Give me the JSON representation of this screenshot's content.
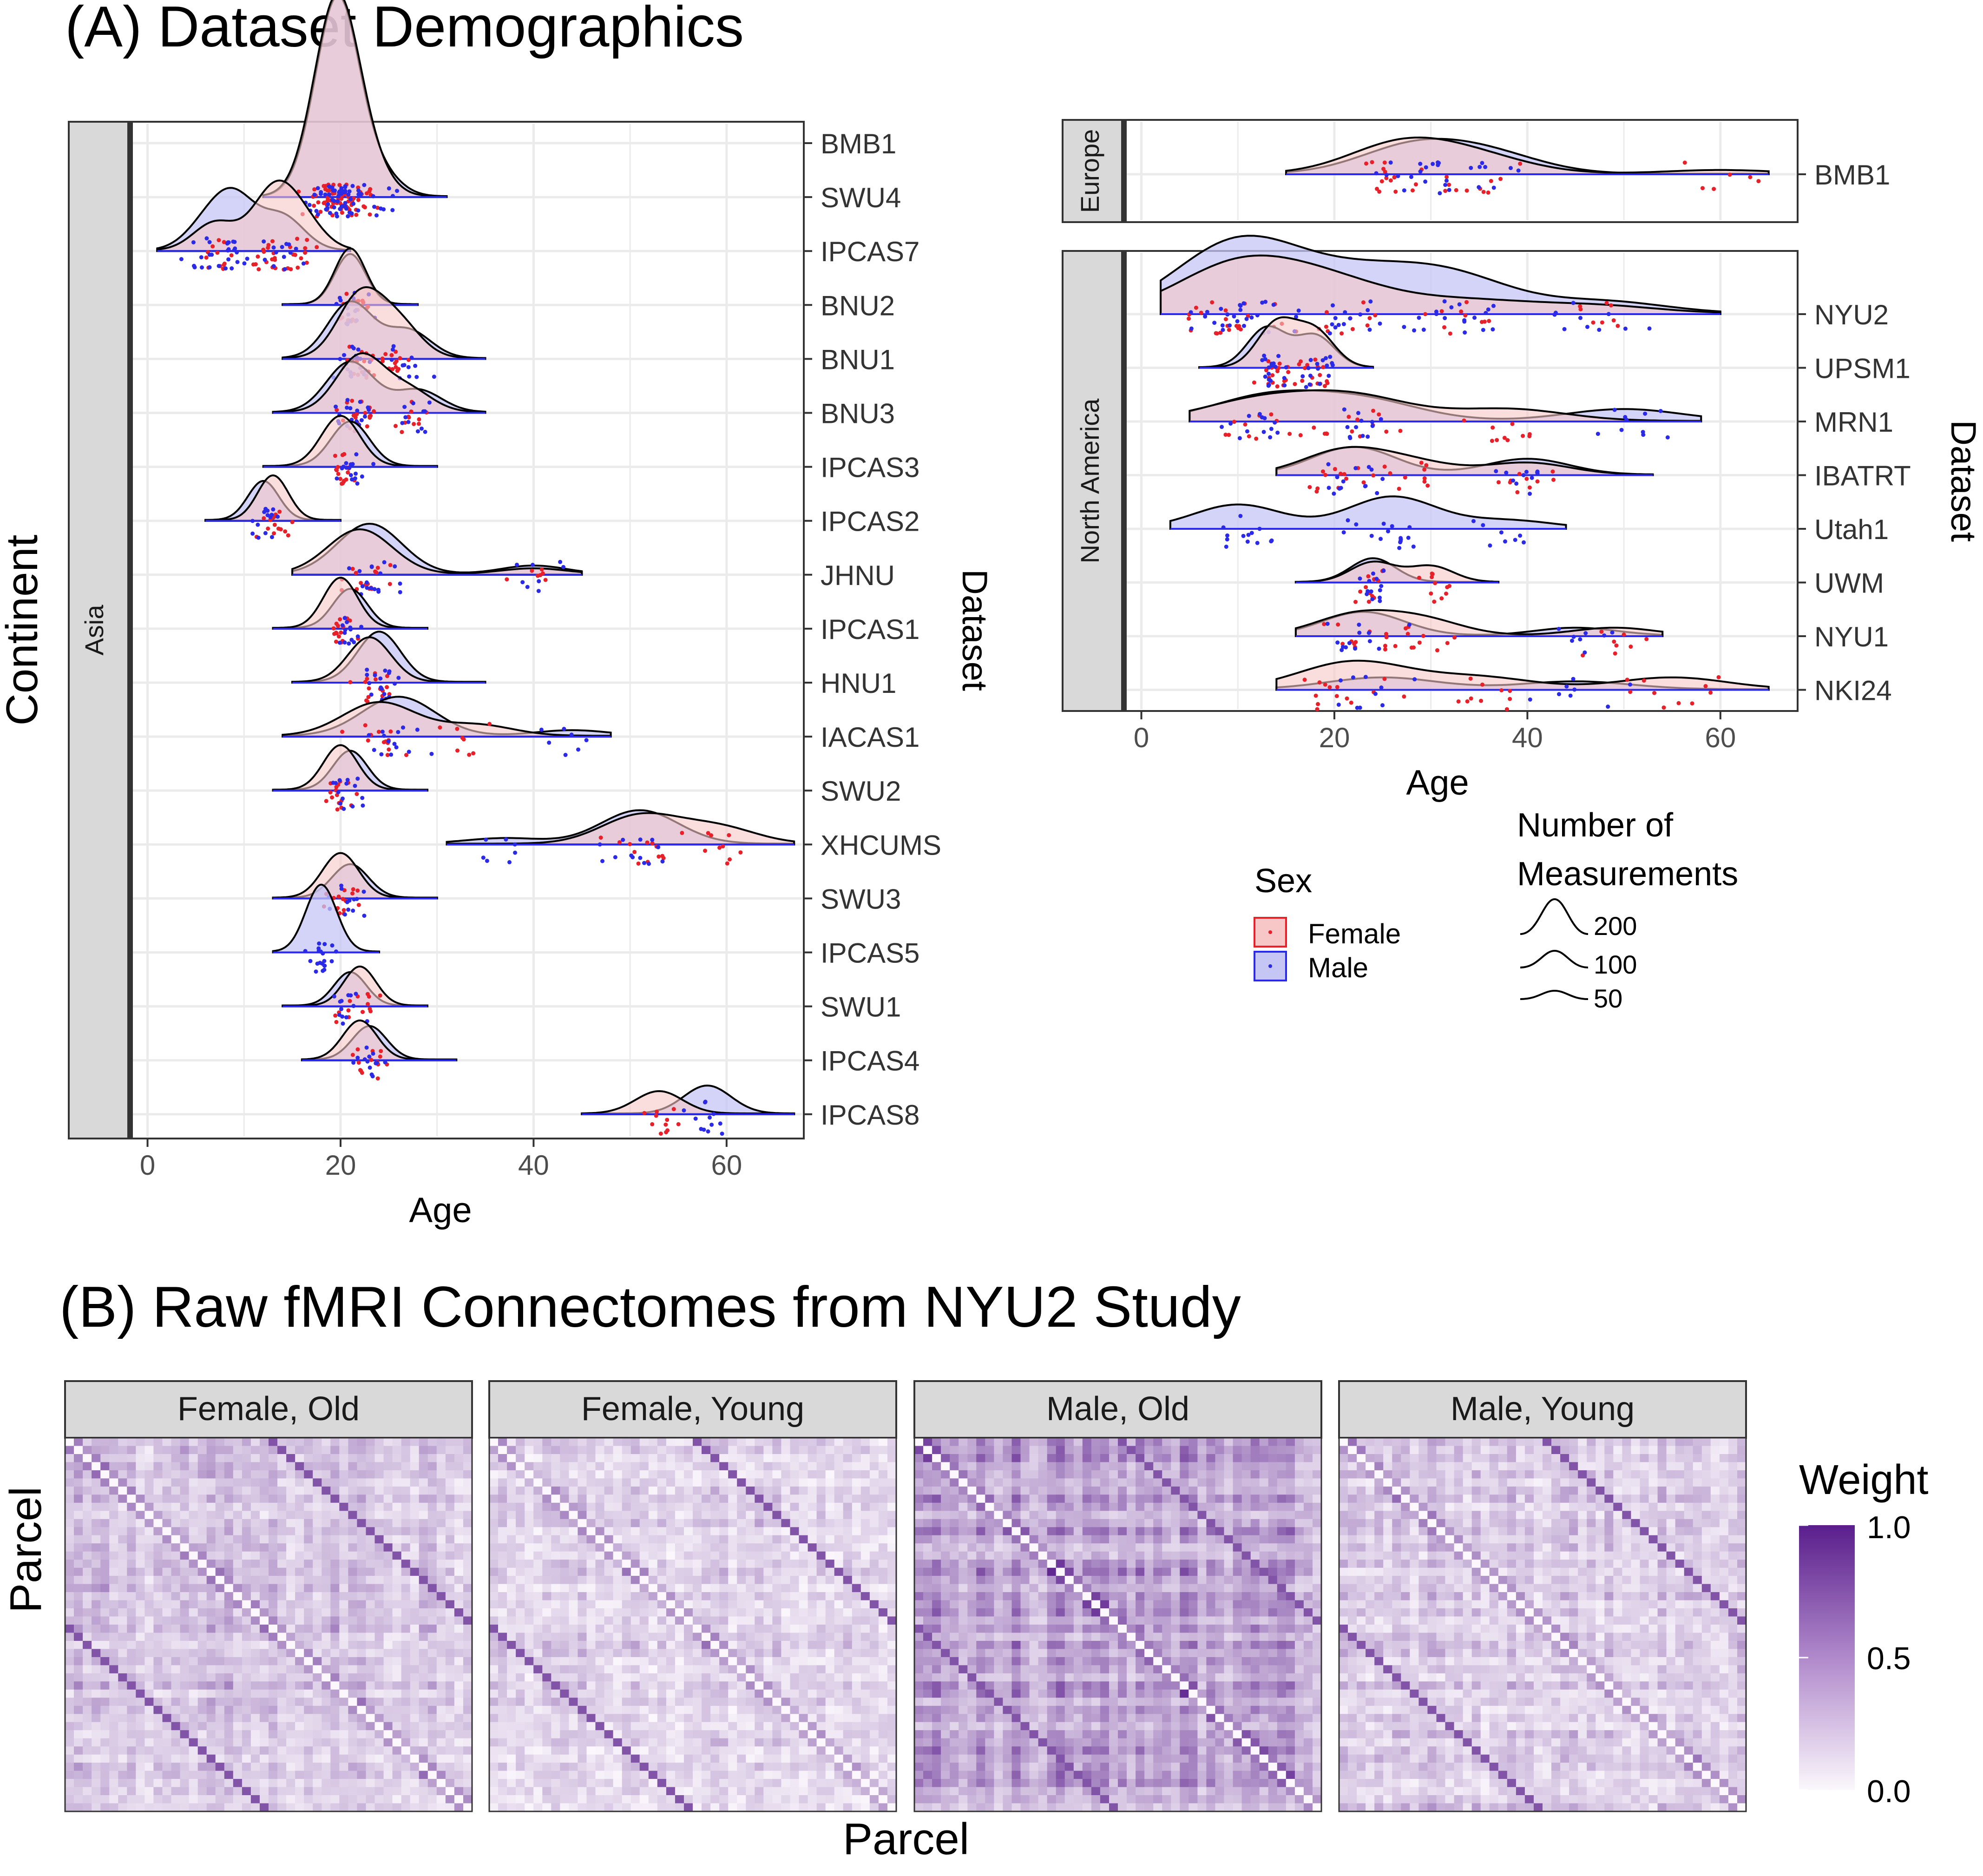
{
  "panel_a": {
    "title": "(A) Dataset Demographics"
  },
  "panel_b": {
    "title": "(B) Raw fMRI Connectomes from NYU2 Study"
  },
  "legend": {
    "sex_title": "Sex",
    "sex_items": [
      {
        "label": "Female",
        "fill": "#f7c6c6",
        "stroke": "#e8202a",
        "dot": "#e8202a"
      },
      {
        "label": "Male",
        "fill": "#c6c6f5",
        "stroke": "#2a2ae8",
        "dot": "#2a2ae8"
      }
    ],
    "size_title_1": "Number of",
    "size_title_2": "Measurements",
    "size_items": [
      "200",
      "100",
      "50"
    ],
    "weight_title": "Weight",
    "weight_ticks": [
      "1.0",
      "0.5",
      "0.0"
    ],
    "weight_range": [
      0,
      1
    ],
    "weight_colors": [
      "#fbf7fc",
      "#5a1e8c"
    ]
  },
  "chart_data": [
    {
      "type": "ridgeline",
      "facet": "Asia",
      "xlabel": "Age",
      "ylabel": "Continent",
      "y2label": "Dataset",
      "xlim": [
        -2,
        68
      ],
      "xticks": [
        "0",
        "20",
        "40",
        "60"
      ],
      "grid": true,
      "rows": [
        {
          "label": "BMB1",
          "female": [],
          "male": []
        },
        {
          "label": "SWU4",
          "range": [
            12,
            31
          ],
          "female": [
            [
              18,
              1.0
            ],
            [
              20,
              2.8
            ],
            [
              23,
              0.5
            ]
          ],
          "male": [
            [
              18,
              0.8
            ],
            [
              20,
              3.0
            ],
            [
              24,
              0.4
            ]
          ]
        },
        {
          "label": "IPCAS7",
          "range": [
            1,
            21
          ],
          "female": [
            [
              7,
              0.5
            ],
            [
              13,
              1.0
            ],
            [
              16,
              0.5
            ]
          ],
          "male": [
            [
              6,
              0.4
            ],
            [
              9,
              0.9
            ],
            [
              14,
              0.6
            ]
          ]
        },
        {
          "label": "BNU2",
          "range": [
            14,
            28
          ],
          "female": [
            [
              21,
              1.0
            ]
          ],
          "male": [
            [
              21,
              0.9
            ]
          ]
        },
        {
          "label": "BNU1",
          "range": [
            14,
            35
          ],
          "female": [
            [
              22,
              1.1
            ],
            [
              26,
              0.6
            ]
          ],
          "male": [
            [
              21,
              1.0
            ],
            [
              27,
              0.5
            ]
          ]
        },
        {
          "label": "BNU3",
          "range": [
            13,
            35
          ],
          "female": [
            [
              22,
              1.0
            ],
            [
              27,
              0.4
            ]
          ],
          "male": [
            [
              21,
              0.9
            ],
            [
              28,
              0.4
            ]
          ]
        },
        {
          "label": "IPCAS3",
          "range": [
            12,
            30
          ],
          "female": [
            [
              20,
              0.9
            ]
          ],
          "male": [
            [
              21,
              0.8
            ]
          ]
        },
        {
          "label": "IPCAS2",
          "range": [
            6,
            20
          ],
          "female": [
            [
              13,
              0.8
            ]
          ],
          "male": [
            [
              12,
              0.7
            ]
          ]
        },
        {
          "label": "JHNU",
          "range": [
            15,
            45
          ],
          "female": [
            [
              22,
              0.8
            ],
            [
              40,
              0.1
            ]
          ],
          "male": [
            [
              23,
              0.9
            ],
            [
              40,
              0.15
            ]
          ]
        },
        {
          "label": "IPCAS1",
          "range": [
            13,
            29
          ],
          "female": [
            [
              20,
              0.9
            ]
          ],
          "male": [
            [
              21,
              0.7
            ]
          ]
        },
        {
          "label": "HNU1",
          "range": [
            15,
            35
          ],
          "female": [
            [
              23,
              0.8
            ]
          ],
          "male": [
            [
              24,
              0.9
            ]
          ]
        },
        {
          "label": "IACAS1",
          "range": [
            14,
            48
          ],
          "female": [
            [
              24,
              0.6
            ],
            [
              34,
              0.2
            ]
          ],
          "male": [
            [
              26,
              0.7
            ],
            [
              44,
              0.1
            ]
          ]
        },
        {
          "label": "SWU2",
          "range": [
            13,
            29
          ],
          "female": [
            [
              20,
              0.8
            ]
          ],
          "male": [
            [
              21,
              0.7
            ]
          ]
        },
        {
          "label": "XHCUMS",
          "range": [
            31,
            67
          ],
          "female": [
            [
              51,
              0.5
            ],
            [
              59,
              0.3
            ]
          ],
          "male": [
            [
              51,
              0.6
            ],
            [
              37,
              0.1
            ]
          ]
        },
        {
          "label": "SWU3",
          "range": [
            13,
            30
          ],
          "female": [
            [
              20,
              0.8
            ]
          ],
          "male": [
            [
              21,
              0.6
            ]
          ]
        },
        {
          "label": "IPCAS5",
          "range": [
            13,
            24
          ],
          "female": [],
          "male": [
            [
              18,
              1.2
            ]
          ]
        },
        {
          "label": "SWU1",
          "range": [
            14,
            29
          ],
          "female": [
            [
              22,
              0.7
            ]
          ],
          "male": [
            [
              21,
              0.6
            ]
          ]
        },
        {
          "label": "IPCAS4",
          "range": [
            16,
            32
          ],
          "female": [
            [
              22,
              0.7
            ]
          ],
          "male": [
            [
              23,
              0.6
            ]
          ]
        },
        {
          "label": "IPCAS8",
          "range": [
            45,
            67
          ],
          "female": [
            [
              53,
              0.4
            ]
          ],
          "male": [
            [
              58,
              0.5
            ]
          ]
        }
      ]
    },
    {
      "type": "ridgeline",
      "facet": "Europe",
      "xlim": [
        -2,
        68
      ],
      "rows": [
        {
          "label": "BMB1",
          "range": [
            15,
            65
          ],
          "female": [
            [
              27,
              0.8
            ],
            [
              35,
              0.4
            ],
            [
              60,
              0.1
            ]
          ],
          "male": [
            [
              28,
              0.7
            ],
            [
              36,
              0.5
            ]
          ]
        }
      ]
    },
    {
      "type": "ridgeline",
      "facet": "North America",
      "xlabel": "Age",
      "y2label": "Dataset",
      "xlim": [
        -2,
        68
      ],
      "xticks": [
        "0",
        "20",
        "40",
        "60"
      ],
      "grid": true,
      "rows": [
        {
          "label": "NYU2",
          "range": [
            2,
            60
          ],
          "female": [
            [
              10,
              1.2
            ],
            [
              20,
              0.7
            ],
            [
              34,
              0.3
            ],
            [
              47,
              0.2
            ]
          ],
          "male": [
            [
              10,
              1.8
            ],
            [
              22,
              0.8
            ],
            [
              32,
              0.9
            ],
            [
              48,
              0.3
            ]
          ]
        },
        {
          "label": "UPSM1",
          "range": [
            6,
            24
          ],
          "female": [
            [
              14,
              1.1
            ],
            [
              18,
              0.9
            ]
          ],
          "male": [
            [
              13,
              1.0
            ],
            [
              18,
              0.8
            ]
          ]
        },
        {
          "label": "MRN1",
          "range": [
            5,
            58
          ],
          "female": [
            [
              12,
              0.5
            ],
            [
              22,
              0.6
            ],
            [
              38,
              0.3
            ]
          ],
          "male": [
            [
              13,
              0.6
            ],
            [
              23,
              0.5
            ],
            [
              50,
              0.3
            ]
          ]
        },
        {
          "label": "IBATRT",
          "range": [
            14,
            53
          ],
          "female": [
            [
              21,
              0.6
            ],
            [
              28,
              0.3
            ],
            [
              40,
              0.3
            ]
          ],
          "male": [
            [
              22,
              0.7
            ],
            [
              40,
              0.4
            ]
          ]
        },
        {
          "label": "Utah1",
          "range": [
            3,
            44
          ],
          "female": [],
          "male": [
            [
              10,
              0.6
            ],
            [
              26,
              0.8
            ],
            [
              38,
              0.2
            ]
          ]
        },
        {
          "label": "UWM",
          "range": [
            16,
            37
          ],
          "female": [
            [
              24,
              0.5
            ],
            [
              30,
              0.4
            ]
          ],
          "male": [
            [
              24,
              0.6
            ]
          ]
        },
        {
          "label": "NYU1",
          "range": [
            16,
            54
          ],
          "female": [
            [
              22,
              0.5
            ],
            [
              29,
              0.4
            ],
            [
              49,
              0.2
            ]
          ],
          "male": [
            [
              23,
              0.6
            ],
            [
              45,
              0.2
            ]
          ]
        },
        {
          "label": "NKI24",
          "range": [
            14,
            65
          ],
          "female": [
            [
              22,
              0.7
            ],
            [
              35,
              0.3
            ],
            [
              55,
              0.3
            ]
          ],
          "male": [
            [
              25,
              0.3
            ],
            [
              45,
              0.2
            ]
          ]
        }
      ]
    },
    {
      "type": "heatmap",
      "xlabel": "Parcel",
      "ylabel": "Parcel",
      "panels": [
        "Female, Old",
        "Female, Young",
        "Male, Old",
        "Male, Young"
      ],
      "value_range": [
        0,
        1
      ]
    }
  ]
}
